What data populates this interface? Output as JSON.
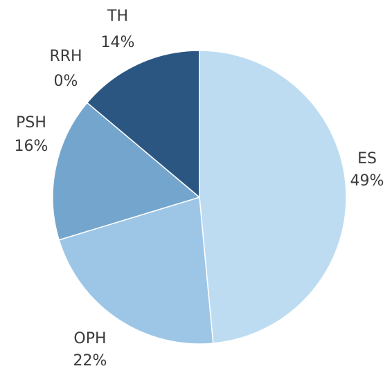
{
  "chart_data": {
    "type": "pie",
    "categories": [
      "ES",
      "OPH",
      "PSH",
      "RRH",
      "TH"
    ],
    "values": [
      49,
      22,
      16,
      0,
      14
    ],
    "value_labels": [
      "49%",
      "22%",
      "16%",
      "0%",
      "14%"
    ],
    "colors": [
      "#bddcf1",
      "#9dc6e6",
      "#74a6cd",
      "#4a7fae",
      "#2b5682"
    ]
  }
}
